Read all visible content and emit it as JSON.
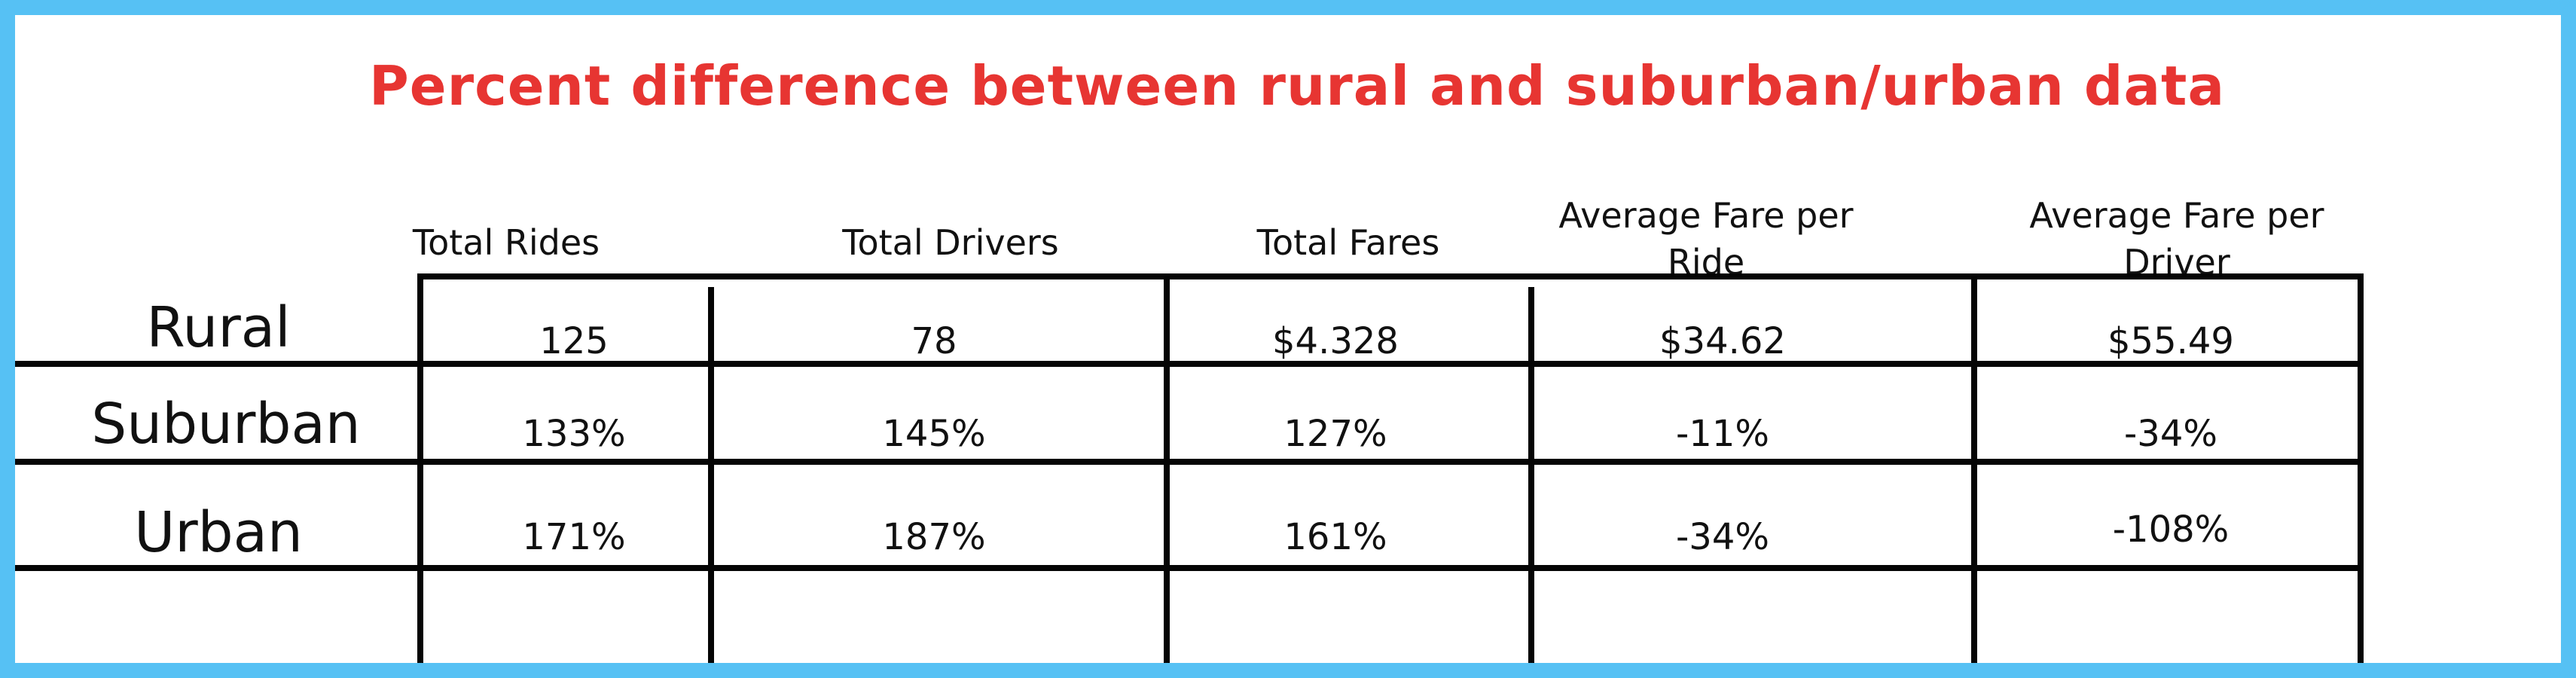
{
  "chart_data": {
    "type": "table",
    "title": "Percent difference between rural and suburban/urban data",
    "columns": [
      "Total Rides",
      "Total Drivers",
      "Total Fares",
      "Average Fare per Ride",
      "Average Fare per Driver"
    ],
    "rows": [
      {
        "label": "Rural",
        "values": [
          "125",
          "78",
          "$4.328",
          "$34.62",
          "$55.49"
        ]
      },
      {
        "label": "Suburban",
        "values": [
          "133%",
          "145%",
          "127%",
          "-11%",
          "-34%"
        ]
      },
      {
        "label": "Urban",
        "values": [
          "171%",
          "187%",
          "161%",
          "-34%",
          "-108%"
        ]
      }
    ]
  },
  "colors": {
    "title": "#e73532",
    "frame": "#56c1f4",
    "background": "#ffffff",
    "gridlines": "#050505"
  }
}
